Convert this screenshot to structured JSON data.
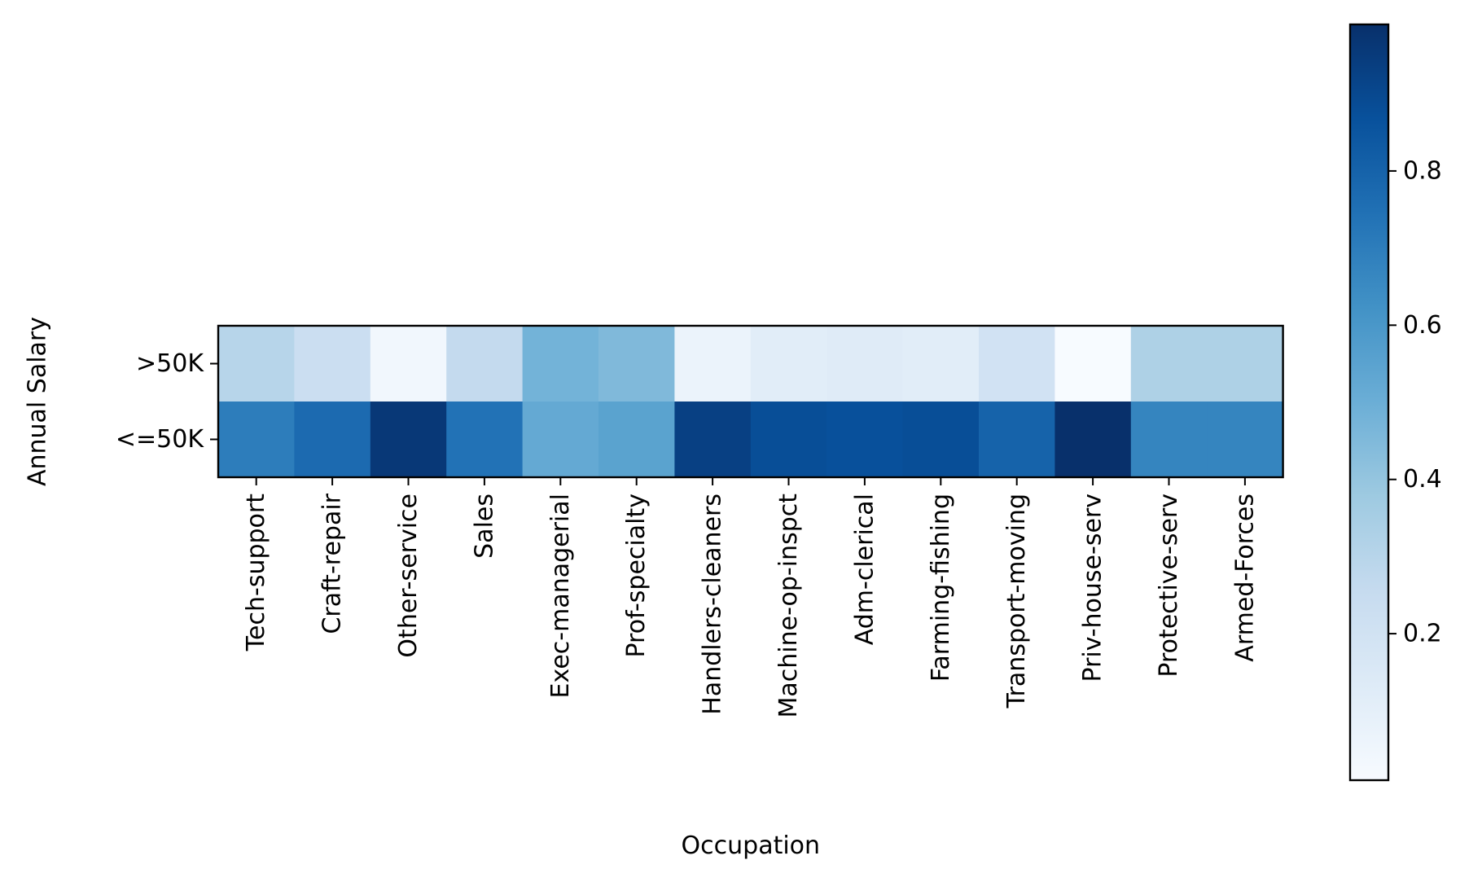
{
  "chart_data": {
    "type": "heatmap",
    "title": "",
    "xlabel": "Occupation",
    "ylabel": "Annual Salary",
    "x_categories": [
      "Tech-support",
      "Craft-repair",
      "Other-service",
      "Sales",
      "Exec-managerial",
      "Prof-specialty",
      "Handlers-cleaners",
      "Machine-op-inspct",
      "Adm-clerical",
      "Farming-fishing",
      "Transport-moving",
      "Priv-house-serv",
      "Protective-serv",
      "Armed-Forces"
    ],
    "y_categories": [
      ">50K",
      "<=50K"
    ],
    "values": [
      [
        0.3,
        0.23,
        0.04,
        0.26,
        0.48,
        0.45,
        0.07,
        0.12,
        0.13,
        0.12,
        0.2,
        0.01,
        0.33,
        0.33
      ],
      [
        0.7,
        0.77,
        0.96,
        0.74,
        0.52,
        0.55,
        0.93,
        0.88,
        0.87,
        0.88,
        0.8,
        0.99,
        0.67,
        0.67
      ]
    ],
    "colormap": "Blues",
    "colorbar": {
      "vmin": 0.01,
      "vmax": 0.99,
      "ticks": [
        0.2,
        0.4,
        0.6,
        0.8
      ],
      "tick_labels": [
        "0.2",
        "0.4",
        "0.6",
        "0.8"
      ]
    },
    "grid": false
  }
}
